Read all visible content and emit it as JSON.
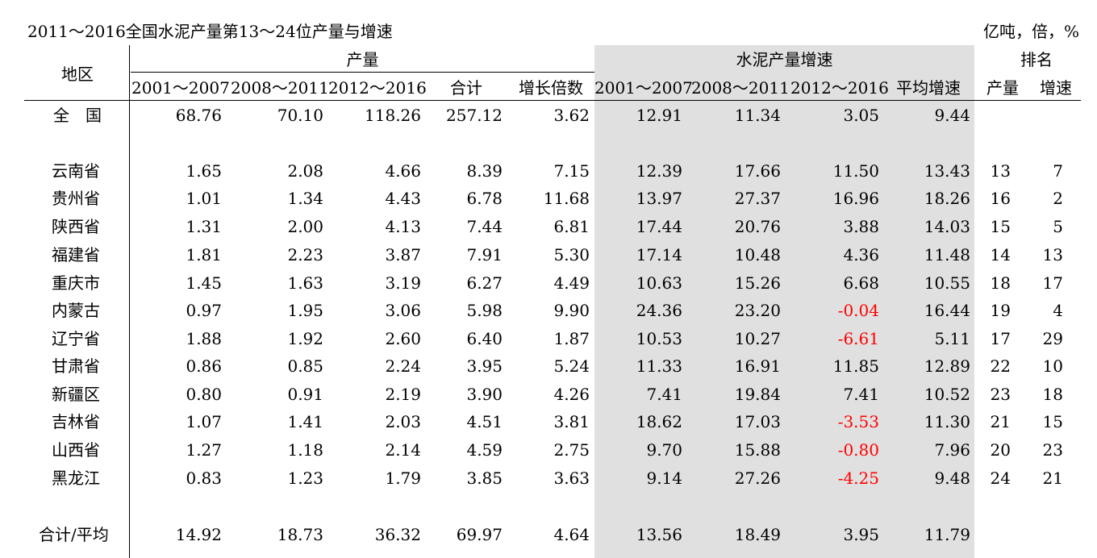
{
  "title": "2011～2016全国水泥产量第13～24位产量与增速",
  "unit": "亿吨，倍，%",
  "headers": {
    "region": "地区",
    "output": "产量",
    "growth": "水泥产量增速",
    "rank": "排名",
    "sub": [
      "2001～2007",
      "2008～2011",
      "2012～2016",
      "合计",
      "增长倍数",
      "2001～2007",
      "2008～2011",
      "2012～2016",
      "平均增速",
      "产量",
      "增速"
    ]
  },
  "national": {
    "label": "全　国",
    "values": [
      "68.76",
      "70.10",
      "118.26",
      "257.12",
      "3.62",
      "12.91",
      "11.34",
      "3.05",
      "9.44",
      "",
      ""
    ]
  },
  "rows": [
    {
      "label": "云南省",
      "values": [
        "1.65",
        "2.08",
        "4.66",
        "8.39",
        "7.15",
        "12.39",
        "17.66",
        "11.50",
        "13.43",
        "13",
        "7"
      ]
    },
    {
      "label": "贵州省",
      "values": [
        "1.01",
        "1.34",
        "4.43",
        "6.78",
        "11.68",
        "13.97",
        "27.37",
        "16.96",
        "18.26",
        "16",
        "2"
      ]
    },
    {
      "label": "陕西省",
      "values": [
        "1.31",
        "2.00",
        "4.13",
        "7.44",
        "6.81",
        "17.44",
        "20.76",
        "3.88",
        "14.03",
        "15",
        "5"
      ]
    },
    {
      "label": "福建省",
      "values": [
        "1.81",
        "2.23",
        "3.87",
        "7.91",
        "5.30",
        "17.14",
        "10.48",
        "4.36",
        "11.48",
        "14",
        "13"
      ]
    },
    {
      "label": "重庆市",
      "values": [
        "1.45",
        "1.63",
        "3.19",
        "6.27",
        "4.49",
        "10.63",
        "15.26",
        "6.68",
        "10.55",
        "18",
        "17"
      ]
    },
    {
      "label": "内蒙古",
      "values": [
        "0.97",
        "1.95",
        "3.06",
        "5.98",
        "9.90",
        "24.36",
        "23.20",
        "-0.04",
        "16.44",
        "19",
        "4"
      ]
    },
    {
      "label": "辽宁省",
      "values": [
        "1.88",
        "1.92",
        "2.60",
        "6.40",
        "1.87",
        "10.53",
        "10.27",
        "-6.61",
        "5.11",
        "17",
        "29"
      ]
    },
    {
      "label": "甘肃省",
      "values": [
        "0.86",
        "0.85",
        "2.24",
        "3.95",
        "5.24",
        "11.33",
        "16.91",
        "11.85",
        "12.89",
        "22",
        "10"
      ]
    },
    {
      "label": "新疆区",
      "values": [
        "0.80",
        "0.91",
        "2.19",
        "3.90",
        "4.26",
        "7.41",
        "19.84",
        "7.41",
        "10.52",
        "23",
        "18"
      ]
    },
    {
      "label": "吉林省",
      "values": [
        "1.07",
        "1.41",
        "2.03",
        "4.51",
        "3.81",
        "18.62",
        "17.03",
        "-3.53",
        "11.30",
        "21",
        "15"
      ]
    },
    {
      "label": "山西省",
      "values": [
        "1.27",
        "1.18",
        "2.14",
        "4.59",
        "2.75",
        "9.70",
        "15.88",
        "-0.80",
        "7.96",
        "20",
        "23"
      ]
    },
    {
      "label": "黑龙江",
      "values": [
        "0.83",
        "1.23",
        "1.79",
        "3.85",
        "3.63",
        "9.14",
        "27.26",
        "-4.25",
        "9.48",
        "24",
        "21"
      ]
    }
  ],
  "total": {
    "label": "合计/平均",
    "values": [
      "14.92",
      "18.73",
      "36.32",
      "69.97",
      "4.64",
      "13.56",
      "18.49",
      "3.95",
      "11.79",
      "",
      ""
    ]
  },
  "colors": {
    "negative": "#ff0000",
    "shade": "#e0e0e0"
  }
}
